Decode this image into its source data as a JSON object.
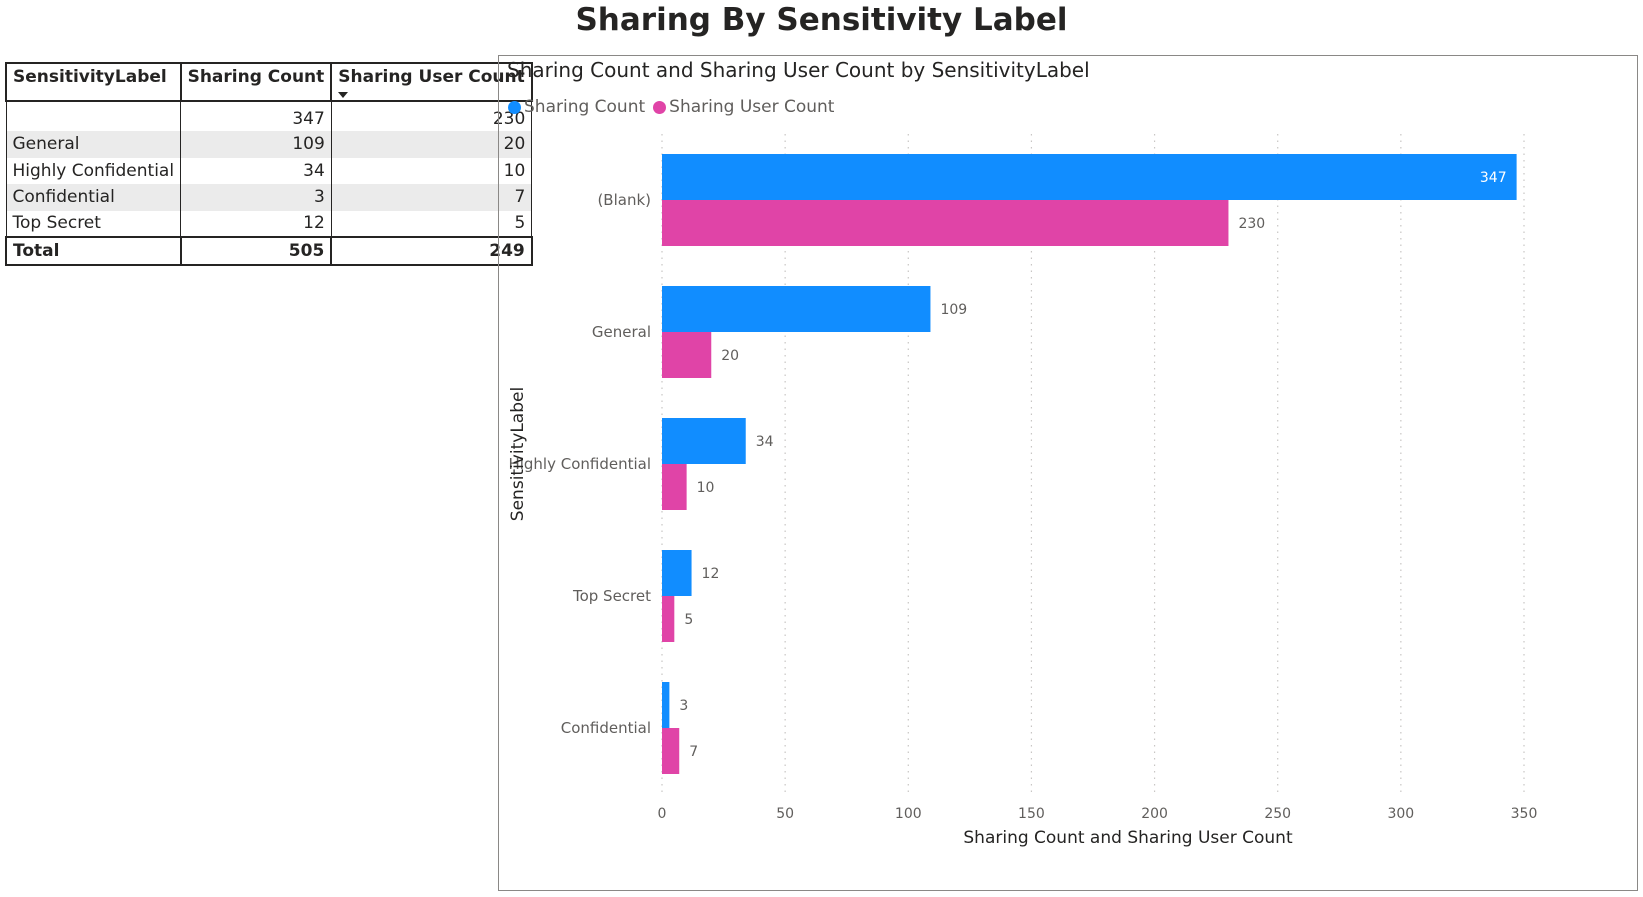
{
  "page_title": "Sharing By Sensitivity Label",
  "table": {
    "headers": [
      "SensitivityLabel",
      "Sharing Count",
      "Sharing User Count"
    ],
    "rows": [
      {
        "label": "",
        "sharing_count": "347",
        "sharing_user_count": "230"
      },
      {
        "label": "General",
        "sharing_count": "109",
        "sharing_user_count": "20"
      },
      {
        "label": "Highly Confidential",
        "sharing_count": "34",
        "sharing_user_count": "10"
      },
      {
        "label": "Confidential",
        "sharing_count": "3",
        "sharing_user_count": "7"
      },
      {
        "label": "Top Secret",
        "sharing_count": "12",
        "sharing_user_count": "5"
      }
    ],
    "total": {
      "label": "Total",
      "sharing_count": "505",
      "sharing_user_count": "249"
    },
    "sort_icon": "sort-descending-icon"
  },
  "chart_data": {
    "type": "bar",
    "orientation": "horizontal",
    "title": "Sharing Count and Sharing User Count by SensitivityLabel",
    "xlabel": "Sharing Count and Sharing User Count",
    "ylabel": "SensitivityLabel",
    "categories": [
      "(Blank)",
      "General",
      "Highly Confidential",
      "Top Secret",
      "Confidential"
    ],
    "series": [
      {
        "name": "Sharing Count",
        "color": "#118dff",
        "values": [
          347,
          109,
          34,
          12,
          3
        ]
      },
      {
        "name": "Sharing User Count",
        "color": "#e044a7",
        "values": [
          230,
          20,
          10,
          5,
          7
        ]
      }
    ],
    "xlim": [
      0,
      350
    ],
    "xticks": [
      0,
      50,
      100,
      150,
      200,
      250,
      300,
      350
    ],
    "grid": true,
    "legend_position": "top-left",
    "data_labels": true
  }
}
